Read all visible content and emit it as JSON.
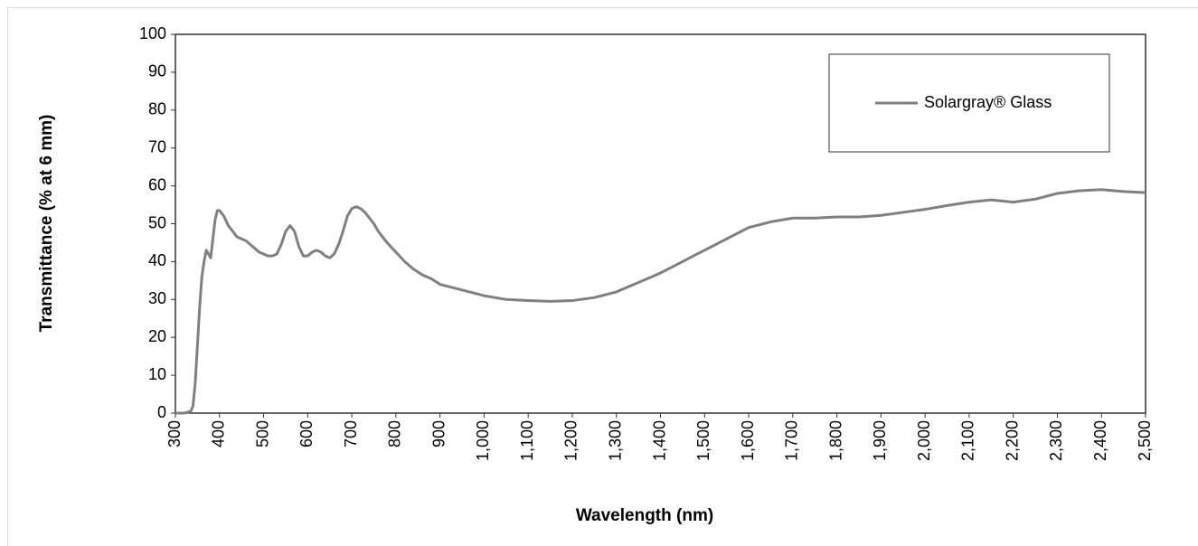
{
  "chart_data": {
    "type": "line",
    "xlabel": "Wavelength (nm)",
    "ylabel": "Transmittance (% at 6 mm)",
    "xlim": [
      300,
      2500
    ],
    "ylim": [
      0,
      100
    ],
    "xticks": [
      300,
      400,
      500,
      600,
      700,
      800,
      900,
      {
        "value": 1000,
        "label": "1,000"
      },
      {
        "value": 1100,
        "label": "1,100"
      },
      {
        "value": 1200,
        "label": "1,200"
      },
      {
        "value": 1300,
        "label": "1,300"
      },
      {
        "value": 1400,
        "label": "1,400"
      },
      {
        "value": 1500,
        "label": "1,500"
      },
      {
        "value": 1600,
        "label": "1,600"
      },
      {
        "value": 1700,
        "label": "1,700"
      },
      {
        "value": 1800,
        "label": "1,800"
      },
      {
        "value": 1900,
        "label": "1,900"
      },
      {
        "value": 2000,
        "label": "2,000"
      },
      {
        "value": 2100,
        "label": "2,100"
      },
      {
        "value": 2200,
        "label": "2,200"
      },
      {
        "value": 2300,
        "label": "2,300"
      },
      {
        "value": 2400,
        "label": "2,400"
      },
      {
        "value": 2500,
        "label": "2,500"
      }
    ],
    "yticks": [
      0,
      10,
      20,
      30,
      40,
      50,
      60,
      70,
      80,
      90,
      100
    ],
    "legend": "upper right",
    "x": [
      300,
      320,
      335,
      340,
      345,
      350,
      355,
      360,
      365,
      370,
      375,
      380,
      385,
      390,
      395,
      400,
      410,
      420,
      430,
      440,
      450,
      460,
      470,
      480,
      490,
      500,
      510,
      520,
      530,
      540,
      550,
      560,
      570,
      580,
      590,
      600,
      610,
      620,
      630,
      640,
      650,
      660,
      670,
      680,
      690,
      700,
      710,
      720,
      730,
      740,
      750,
      760,
      770,
      780,
      800,
      820,
      840,
      860,
      880,
      900,
      950,
      1000,
      1050,
      1100,
      1150,
      1200,
      1250,
      1300,
      1350,
      1400,
      1450,
      1500,
      1550,
      1600,
      1650,
      1700,
      1750,
      1800,
      1850,
      1900,
      1950,
      2000,
      2050,
      2100,
      2150,
      2200,
      2250,
      2300,
      2350,
      2400,
      2450,
      2500
    ],
    "series": [
      {
        "name": "Solargray® Glass",
        "color": "#808080",
        "values": [
          0,
          0,
          0.5,
          2,
          8,
          18,
          28,
          36,
          40,
          43,
          42,
          41,
          46,
          51,
          53.5,
          53.5,
          52,
          49.5,
          48,
          46.5,
          46,
          45.5,
          44.5,
          43.5,
          42.5,
          42,
          41.5,
          41.5,
          42,
          44.5,
          48,
          49.5,
          48,
          44,
          41.5,
          41.5,
          42.5,
          43,
          42.5,
          41.5,
          41,
          42,
          44.5,
          48,
          52,
          54,
          54.5,
          54,
          53,
          51.5,
          50,
          48,
          46.5,
          45,
          42.5,
          40,
          38,
          36.5,
          35.5,
          34,
          32.5,
          31,
          30,
          29.7,
          29.5,
          29.7,
          30.5,
          32,
          34.5,
          37,
          40,
          43,
          46,
          49,
          50.5,
          51.5,
          51.5,
          51.8,
          51.8,
          52.2,
          53,
          53.8,
          54.8,
          55.7,
          56.3,
          55.7,
          56.5,
          58,
          58.7,
          59,
          58.5,
          58.2
        ]
      }
    ]
  }
}
